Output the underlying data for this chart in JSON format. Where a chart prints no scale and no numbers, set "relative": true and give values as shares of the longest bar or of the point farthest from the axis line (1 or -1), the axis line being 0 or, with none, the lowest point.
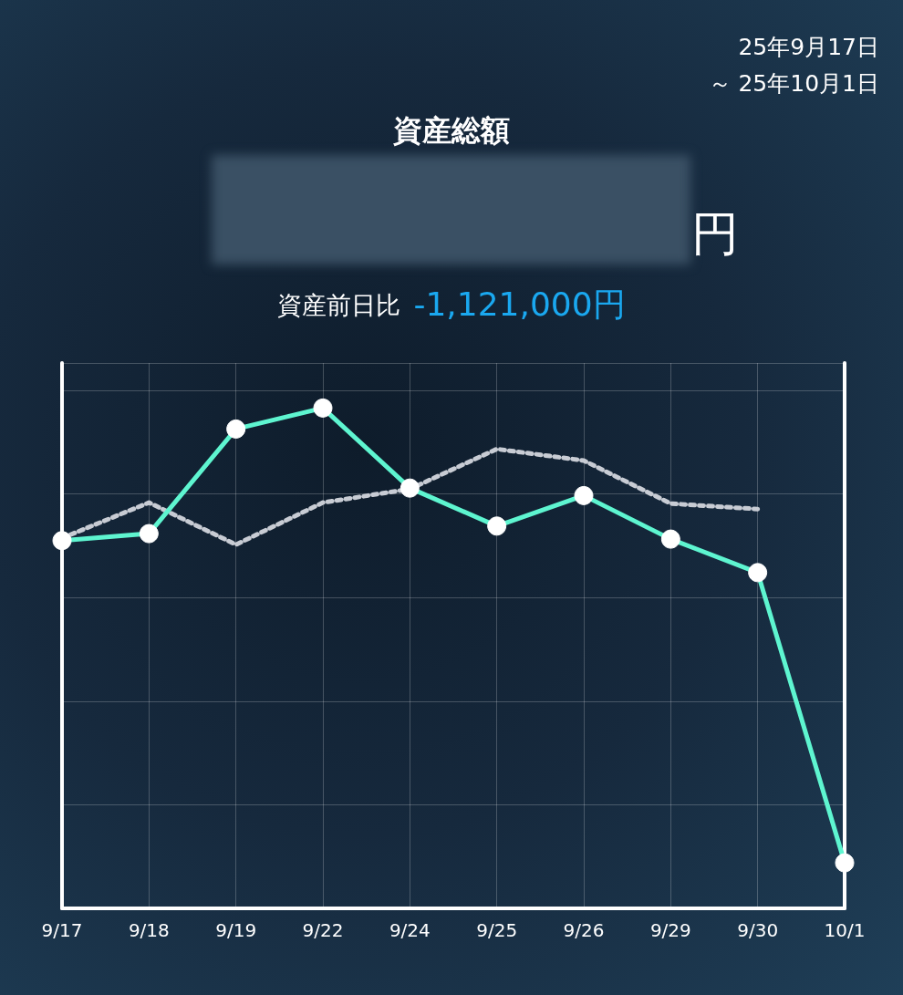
{
  "chart_data": {
    "type": "line",
    "title": "資産総額",
    "annotations": [
      "25年9月17日",
      "～ 25年10月1日",
      "円",
      "資産前日比",
      "-1,121,000円"
    ],
    "categories": [
      "9/17",
      "9/18",
      "9/19",
      "9/22",
      "9/24",
      "9/25",
      "9/26",
      "9/29",
      "9/30",
      "10/1"
    ],
    "relative": true,
    "grid": true,
    "series": [
      {
        "color": "#5ef5d0",
        "marker": "circle",
        "line_style": "solid",
        "values": [
          0.735,
          0.749,
          0.958,
          1,
          0.84,
          0.764,
          0.825,
          0.738,
          0.671,
          0.091
        ]
      },
      {
        "color": "#c8ccd4",
        "marker": "none",
        "line_style": "dotted",
        "values": [
          0.74,
          0.811,
          0.727,
          0.811,
          0.838,
          0.918,
          0.895,
          0.809,
          0.798,
          null
        ]
      }
    ]
  }
}
